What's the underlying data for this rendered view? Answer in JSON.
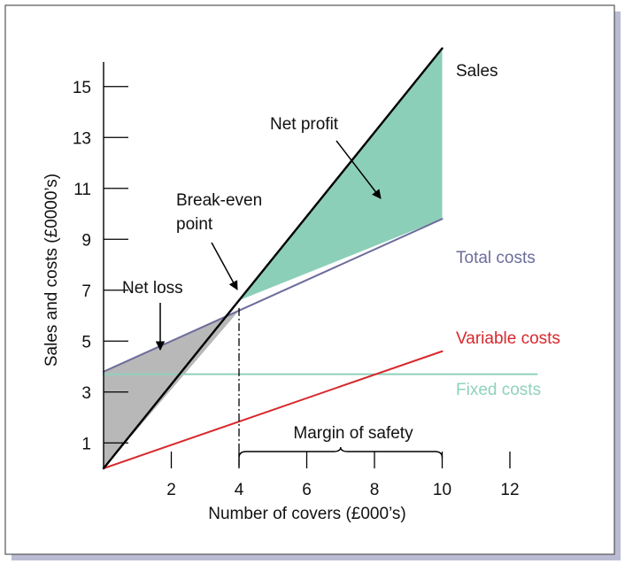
{
  "chart_data": {
    "type": "line",
    "xlabel": "Number of covers (£000’s)",
    "ylabel": "Sales and costs (£0000’s)",
    "xlim": [
      0,
      12
    ],
    "ylim": [
      0,
      16
    ],
    "x_ticks": [
      2,
      4,
      6,
      8,
      10,
      12
    ],
    "y_ticks": [
      1,
      3,
      5,
      7,
      9,
      11,
      13,
      15
    ],
    "grid": false,
    "series": [
      {
        "name": "Sales",
        "color": "#000000",
        "x": [
          0,
          10
        ],
        "y": [
          0,
          16.5
        ]
      },
      {
        "name": "Total costs",
        "color": "#6c6c9c",
        "x": [
          0,
          10
        ],
        "y": [
          3.8,
          9.8
        ]
      },
      {
        "name": "Variable costs",
        "color": "#d8282c",
        "x": [
          0,
          10
        ],
        "y": [
          0,
          4.6
        ]
      },
      {
        "name": "Fixed costs",
        "color": "#8fd1bd",
        "x": [
          0,
          12.8
        ],
        "y": [
          3.7,
          3.7
        ]
      }
    ],
    "regions": [
      {
        "name": "Net loss",
        "color": "#b8b8b8"
      },
      {
        "name": "Net profit",
        "color": "#8ccfb8"
      }
    ],
    "break_even": {
      "label_line1": "Break-even",
      "label_line2": "point",
      "x": 4,
      "y": 6.3
    },
    "margin_of_safety": {
      "label": "Margin of safety",
      "from": 4,
      "to": 10
    },
    "annotations": {
      "net_profit": "Net profit",
      "net_loss": "Net loss"
    }
  }
}
